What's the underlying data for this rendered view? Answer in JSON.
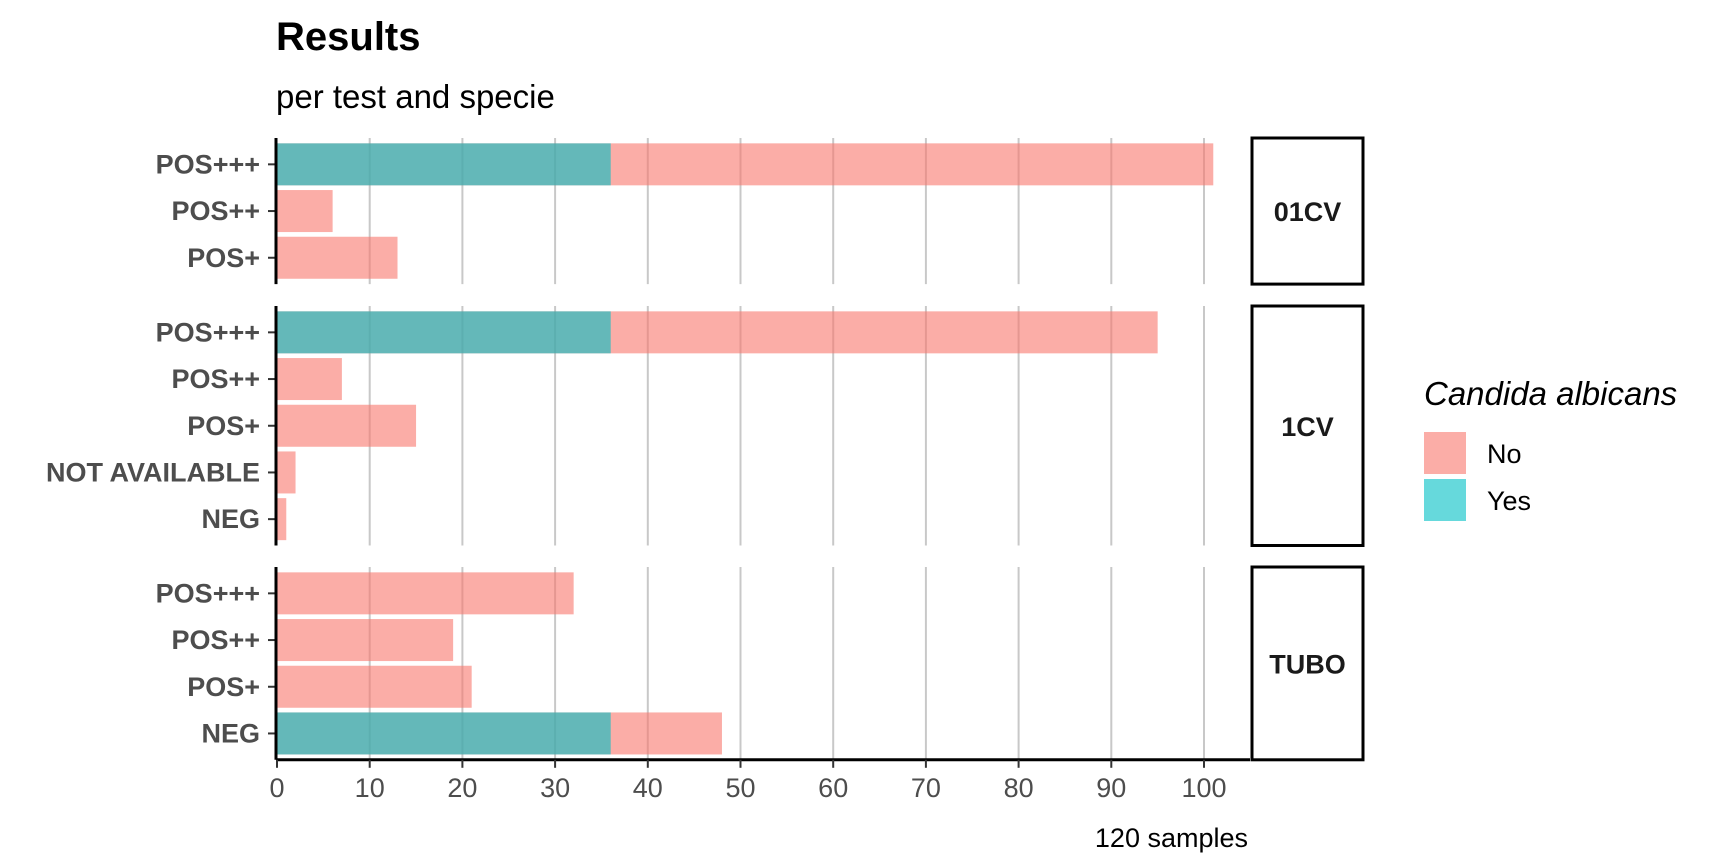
{
  "chart_data": {
    "type": "bar",
    "title": "Results",
    "subtitle": "per test and specie",
    "caption": "120 samples",
    "xlim": [
      0,
      105
    ],
    "xticks": [
      0,
      10,
      20,
      30,
      40,
      50,
      60,
      70,
      80,
      90,
      100
    ],
    "grid": true,
    "legend": {
      "title": "Candida albicans",
      "position": "right",
      "entries": [
        {
          "name": "No",
          "color": "#f8766d"
        },
        {
          "name": "Yes",
          "color": "#00bfc4"
        }
      ]
    },
    "panels": [
      {
        "name": "01CV",
        "categories": [
          "POS+++",
          "POS++",
          "POS+"
        ],
        "series": [
          {
            "name": "No",
            "values": [
              101,
              6,
              13
            ]
          },
          {
            "name": "Yes",
            "values": [
              36,
              0,
              0
            ]
          }
        ]
      },
      {
        "name": "1CV",
        "categories": [
          "POS+++",
          "POS++",
          "POS+",
          "NOT AVAILABLE",
          "NEG"
        ],
        "series": [
          {
            "name": "No",
            "values": [
              95,
              7,
              15,
              2,
              1
            ]
          },
          {
            "name": "Yes",
            "values": [
              36,
              0,
              0,
              0,
              0
            ]
          }
        ]
      },
      {
        "name": "TUBO",
        "categories": [
          "POS+++",
          "POS++",
          "POS+",
          "NEG"
        ],
        "series": [
          {
            "name": "No",
            "values": [
              32,
              19,
              21,
              48
            ]
          },
          {
            "name": "Yes",
            "values": [
              0,
              0,
              0,
              36
            ]
          }
        ]
      }
    ]
  }
}
